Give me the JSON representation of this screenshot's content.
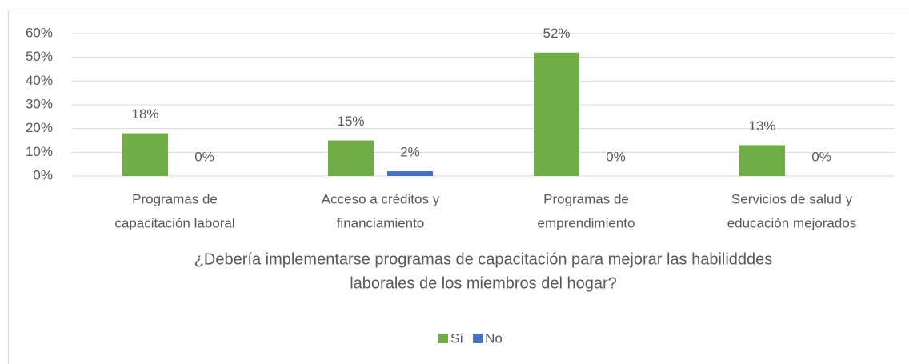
{
  "chart_data": {
    "type": "bar",
    "categories": [
      [
        "Programas de",
        "capacitación laboral"
      ],
      [
        "Acceso a créditos y",
        "financiamiento"
      ],
      [
        "Programas de",
        "emprendimiento"
      ],
      [
        "Servicios de salud y",
        "educación mejorados"
      ]
    ],
    "series": [
      {
        "name": "Sí",
        "color": "#70ad47",
        "values": [
          18,
          15,
          52,
          13
        ],
        "value_labels": [
          "18%",
          "15%",
          "52%",
          "13%"
        ]
      },
      {
        "name": "No",
        "color": "#4472c4",
        "values": [
          0,
          2,
          0,
          0
        ],
        "value_labels": [
          "0%",
          "2%",
          "0%",
          "0%"
        ]
      }
    ],
    "xlabel": [
      "¿Debería implementarse programas de capacitación para mejorar las habilidddes",
      "laborales de los miembros del hogar?"
    ],
    "ylim": [
      0,
      60
    ],
    "yticks": [
      {
        "value": 0,
        "label": "0%"
      },
      {
        "value": 10,
        "label": "10%"
      },
      {
        "value": 20,
        "label": "20%"
      },
      {
        "value": 30,
        "label": "30%"
      },
      {
        "value": 40,
        "label": "40%"
      },
      {
        "value": 50,
        "label": "50%"
      },
      {
        "value": 60,
        "label": "60%"
      }
    ],
    "grid": true,
    "legend": "bottom"
  }
}
